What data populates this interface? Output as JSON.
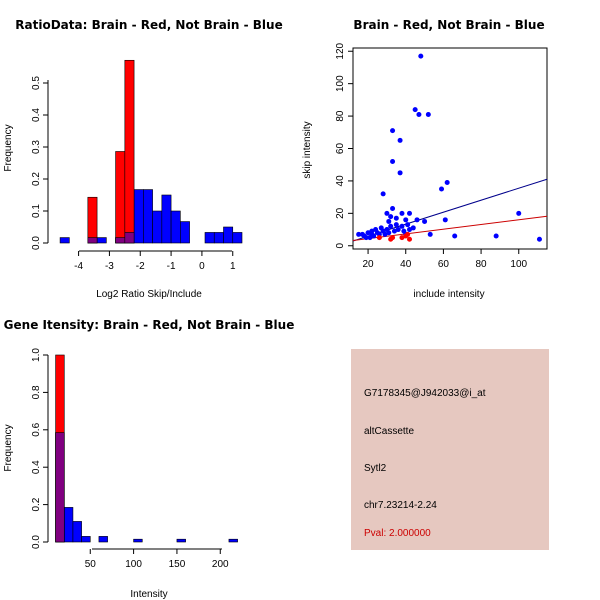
{
  "colors": {
    "red": "#ff0000",
    "blue": "#0000ff",
    "overlap": "#800080",
    "panel_bg": "#e6c8c0",
    "pval": "#cc0000",
    "fit_blue": "#00008b",
    "fit_red": "#cc0000"
  },
  "chart_data": [
    {
      "type": "bar",
      "title": "RatioData: Brain - Red, Not Brain - Blue",
      "xlabel": "Log2 Ratio Skip/Include",
      "ylabel": "Frequency",
      "xlim": [
        -4.7,
        1.3
      ],
      "ylim": [
        0,
        0.6
      ],
      "xticks": [
        -4,
        -3,
        -2,
        -1,
        0,
        1
      ],
      "yticks": [
        0.0,
        0.1,
        0.2,
        0.3,
        0.4,
        0.5
      ],
      "series": [
        {
          "name": "Not Brain",
          "color": "blue",
          "bins": [
            {
              "from": -4.6,
              "to": -4.3,
              "value": 0.017
            },
            {
              "from": -3.7,
              "to": -3.4,
              "value": 0.017
            },
            {
              "from": -3.4,
              "to": -3.1,
              "value": 0.017
            },
            {
              "from": -2.8,
              "to": -2.5,
              "value": 0.017
            },
            {
              "from": -2.5,
              "to": -2.2,
              "value": 0.033
            },
            {
              "from": -2.2,
              "to": -1.9,
              "value": 0.167
            },
            {
              "from": -1.9,
              "to": -1.6,
              "value": 0.167
            },
            {
              "from": -1.6,
              "to": -1.3,
              "value": 0.1
            },
            {
              "from": -1.3,
              "to": -1.0,
              "value": 0.15
            },
            {
              "from": -1.0,
              "to": -0.7,
              "value": 0.1
            },
            {
              "from": -0.7,
              "to": -0.4,
              "value": 0.067
            },
            {
              "from": 0.1,
              "to": 0.4,
              "value": 0.033
            },
            {
              "from": 0.4,
              "to": 0.7,
              "value": 0.033
            },
            {
              "from": 0.7,
              "to": 1.0,
              "value": 0.05
            },
            {
              "from": 1.0,
              "to": 1.3,
              "value": 0.033
            }
          ]
        },
        {
          "name": "Brain",
          "color": "red",
          "bins": [
            {
              "from": -3.7,
              "to": -3.4,
              "value": 0.143
            },
            {
              "from": -2.8,
              "to": -2.5,
              "value": 0.286
            },
            {
              "from": -2.5,
              "to": -2.2,
              "value": 0.571
            }
          ]
        }
      ]
    },
    {
      "type": "scatter",
      "title": "Brain - Red, Not Brain - Blue",
      "xlabel": "include intensity",
      "ylabel": "skip intensity",
      "xlim": [
        12,
        115
      ],
      "ylim": [
        -2,
        122
      ],
      "xticks": [
        20,
        40,
        60,
        80,
        100
      ],
      "yticks": [
        0,
        20,
        40,
        60,
        80,
        100,
        120
      ],
      "series": [
        {
          "name": "Not Brain",
          "color": "blue",
          "points": [
            [
              15,
              7
            ],
            [
              17,
              7
            ],
            [
              18,
              6
            ],
            [
              19,
              5
            ],
            [
              20,
              8
            ],
            [
              21,
              5
            ],
            [
              22,
              7
            ],
            [
              22,
              9
            ],
            [
              23,
              6
            ],
            [
              24,
              10
            ],
            [
              25,
              8
            ],
            [
              26,
              7
            ],
            [
              27,
              11
            ],
            [
              28,
              9
            ],
            [
              28,
              32
            ],
            [
              29,
              7
            ],
            [
              30,
              10
            ],
            [
              30,
              20
            ],
            [
              31,
              15
            ],
            [
              31,
              8
            ],
            [
              32,
              18
            ],
            [
              32,
              12
            ],
            [
              33,
              71
            ],
            [
              33,
              52
            ],
            [
              33,
              23
            ],
            [
              34,
              9
            ],
            [
              35,
              17
            ],
            [
              35,
              13
            ],
            [
              36,
              10
            ],
            [
              37,
              65
            ],
            [
              37,
              45
            ],
            [
              38,
              20
            ],
            [
              38,
              12
            ],
            [
              39,
              9
            ],
            [
              40,
              16
            ],
            [
              40,
              7
            ],
            [
              41,
              13
            ],
            [
              42,
              20
            ],
            [
              42,
              10
            ],
            [
              44,
              11
            ],
            [
              45,
              84
            ],
            [
              46,
              16
            ],
            [
              47,
              81
            ],
            [
              48,
              117
            ],
            [
              50,
              15
            ],
            [
              52,
              81
            ],
            [
              53,
              7
            ],
            [
              59,
              35
            ],
            [
              61,
              16
            ],
            [
              62,
              39
            ],
            [
              66,
              6
            ],
            [
              88,
              6
            ],
            [
              100,
              20
            ],
            [
              111,
              4
            ]
          ],
          "fit": {
            "intercept": -1.5,
            "slope": 0.37
          }
        },
        {
          "name": "Brain",
          "color": "red",
          "points": [
            [
              26,
              5
            ],
            [
              32,
              4
            ],
            [
              33,
              5
            ],
            [
              38,
              5
            ],
            [
              40,
              6
            ],
            [
              41,
              7
            ],
            [
              42,
              4
            ]
          ],
          "fit": {
            "intercept": 1.5,
            "slope": 0.145
          }
        }
      ]
    },
    {
      "type": "bar",
      "title": "Gene Itensity: Brain - Red, Not Brain - Blue",
      "xlabel": "Intensity",
      "ylabel": "Frequency",
      "xlim": [
        7,
        232
      ],
      "ylim": [
        0,
        1.0
      ],
      "xticks": [
        50,
        100,
        150,
        200
      ],
      "yticks": [
        0.0,
        0.2,
        0.4,
        0.6,
        0.8,
        1.0
      ],
      "series": [
        {
          "name": "Not Brain",
          "color": "blue",
          "bins": [
            {
              "from": 10,
              "to": 20,
              "value": 0.585
            },
            {
              "from": 20,
              "to": 30,
              "value": 0.185
            },
            {
              "from": 30,
              "to": 40,
              "value": 0.11
            },
            {
              "from": 40,
              "to": 50,
              "value": 0.03
            },
            {
              "from": 60,
              "to": 70,
              "value": 0.03
            },
            {
              "from": 100,
              "to": 110,
              "value": 0.015
            },
            {
              "from": 150,
              "to": 160,
              "value": 0.015
            },
            {
              "from": 210,
              "to": 220,
              "value": 0.015
            }
          ]
        },
        {
          "name": "Brain",
          "color": "red",
          "bins": [
            {
              "from": 10,
              "to": 20,
              "value": 1.0
            }
          ]
        }
      ]
    }
  ],
  "info_panel": {
    "probe_id": "G7178345@J942033@i_at",
    "event_type": "altCassette",
    "gene": "Sytl2",
    "location": "chr7.23214-2.24",
    "pval": "Pval: 2.000000"
  }
}
